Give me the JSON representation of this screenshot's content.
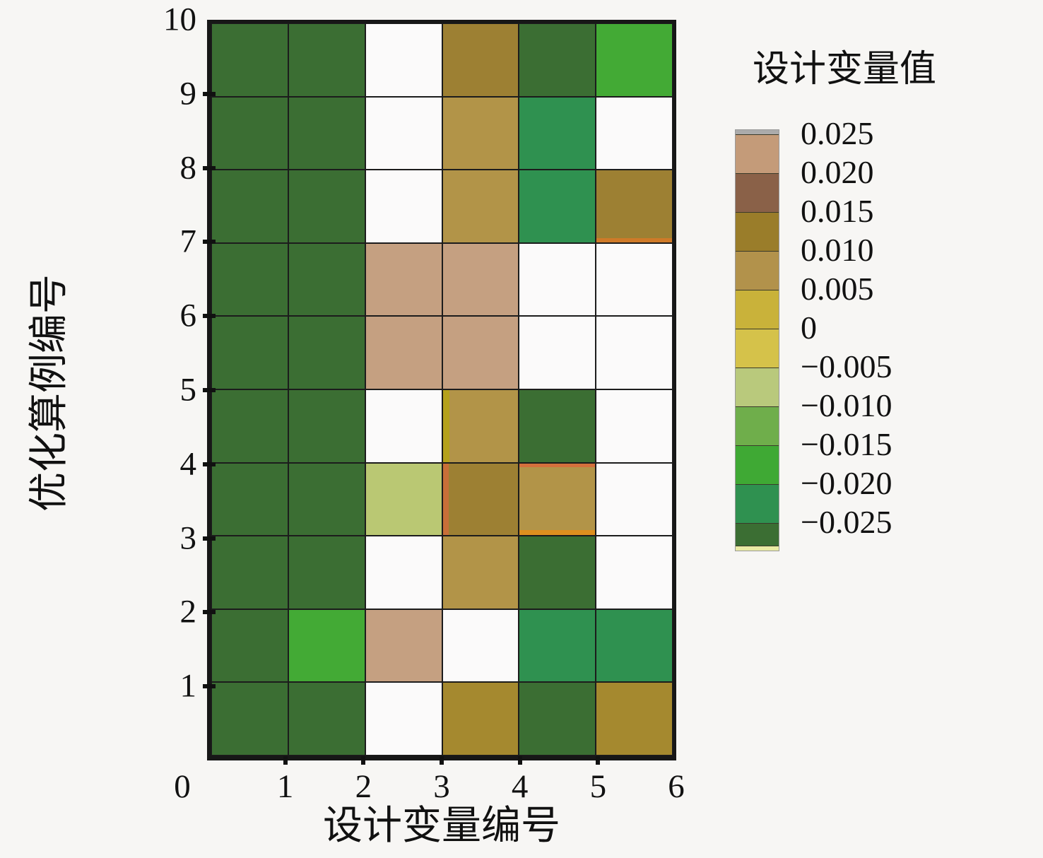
{
  "page": {
    "background": "#f7f6f4"
  },
  "axes": {
    "x_title": "设计变量编号",
    "y_title": "优化算例编号",
    "x_tick_labels": [
      "0",
      "1",
      "2",
      "3",
      "4",
      "5",
      "6"
    ],
    "y_tick_labels": [
      "10",
      "9",
      "8",
      "7",
      "6",
      "5",
      "4",
      "3",
      "2",
      "1"
    ]
  },
  "legend": {
    "title": "设计变量值"
  },
  "chart_data": {
    "type": "heatmap",
    "title": "",
    "xlabel": "设计变量编号",
    "ylabel": "优化算例编号",
    "x_range": [
      0,
      6
    ],
    "y_range": [
      0,
      10
    ],
    "grid": true,
    "legend_position": "right",
    "columns": [
      1,
      2,
      3,
      4,
      5,
      6
    ],
    "rows_top_to_bottom": [
      10,
      9,
      8,
      7,
      6,
      5,
      4,
      3,
      2,
      1
    ],
    "values": [
      [
        -0.028,
        -0.028,
        null,
        0.012,
        -0.028,
        -0.017
      ],
      [
        -0.028,
        -0.028,
        null,
        0.008,
        -0.022,
        null
      ],
      [
        -0.028,
        -0.028,
        null,
        0.008,
        -0.022,
        0.012
      ],
      [
        -0.028,
        -0.028,
        0.022,
        0.022,
        null,
        null
      ],
      [
        -0.028,
        -0.028,
        0.022,
        0.022,
        null,
        null
      ],
      [
        -0.028,
        -0.028,
        null,
        0.008,
        -0.028,
        null
      ],
      [
        -0.028,
        -0.028,
        -0.008,
        0.012,
        0.008,
        null
      ],
      [
        -0.028,
        -0.028,
        null,
        0.008,
        -0.028,
        null
      ],
      [
        -0.028,
        -0.017,
        0.022,
        null,
        -0.022,
        -0.022
      ],
      [
        -0.028,
        -0.028,
        null,
        0.01,
        -0.028,
        0.01
      ]
    ],
    "cell_colors": [
      [
        "#3b6e33",
        "#3b6e33",
        null,
        "#9d8033",
        "#3b6e33",
        "#43aa35"
      ],
      [
        "#3b6e33",
        "#3b6e33",
        null,
        "#b29448",
        "#2f9150",
        null
      ],
      [
        "#3b6e33",
        "#3b6e33",
        null,
        "#b29448",
        "#2f9150",
        "#9d8033"
      ],
      [
        "#3b6e33",
        "#3b6e33",
        "#c5a081",
        "#c5a081",
        null,
        null
      ],
      [
        "#3b6e33",
        "#3b6e33",
        "#c5a081",
        "#c5a081",
        null,
        null
      ],
      [
        "#3b6e33",
        "#3b6e33",
        null,
        "#b29448",
        "#3b6e33",
        null
      ],
      [
        "#3b6e33",
        "#3b6e33",
        "#bac873",
        "#9d8033",
        "#b29448",
        null
      ],
      [
        "#3b6e33",
        "#3b6e33",
        null,
        "#b29448",
        "#3b6e33",
        null
      ],
      [
        "#3b6e33",
        "#43aa35",
        "#c5a081",
        null,
        "#2f9150",
        "#2f9150"
      ],
      [
        "#3b6e33",
        "#3b6e33",
        null,
        "#a5892f",
        "#3b6e33",
        "#a5892f"
      ]
    ],
    "no_data_color": "#fbfafa",
    "edge_accents": [
      {
        "row": 2,
        "col": 5,
        "edge": "bottom",
        "size": 6,
        "color": "#cf7a28"
      },
      {
        "row": 5,
        "col": 3,
        "edge": "left",
        "size": 9,
        "color": "#b5a11c"
      },
      {
        "row": 6,
        "col": 3,
        "edge": "left",
        "size": 8,
        "color": "#c86f38"
      },
      {
        "row": 6,
        "col": 4,
        "edge": "top",
        "size": 5,
        "color": "#d4703c"
      },
      {
        "row": 6,
        "col": 4,
        "edge": "bottom",
        "size": 7,
        "color": "#dd8f1f"
      }
    ],
    "colorbar": {
      "title": "设计变量值",
      "tick_labels": [
        "0.025",
        "0.020",
        "0.015",
        "0.010",
        "0.005",
        "0",
        "−0.005",
        "−0.010",
        "−0.015",
        "−0.020",
        "−0.025"
      ],
      "segment_colors_top_to_bottom": [
        "#c49b79",
        "#8a6148",
        "#9a7d2a",
        "#b2924b",
        "#c9b23a",
        "#d5c24a",
        "#b9c97c",
        "#6fae4b",
        "#3fa934",
        "#2f9150"
      ],
      "over_color": "#ababab",
      "under_color": "#3b6e33",
      "under_strip_color": "#e9eba4"
    }
  }
}
